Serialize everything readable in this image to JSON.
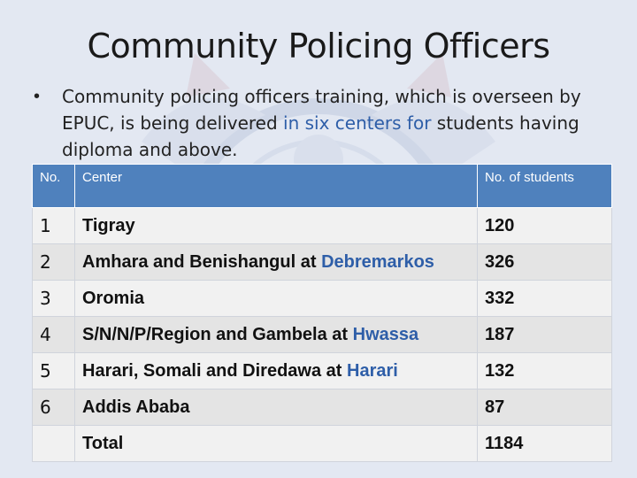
{
  "title": "Community Policing Officers",
  "bullet": {
    "part1": "Community policing officers training, which is overseen by EPUC, is being delivered ",
    "highlight": "in six centers for",
    "part2": " students having diploma and above."
  },
  "table": {
    "headers": [
      "No.",
      "Center",
      "No. of students"
    ],
    "rows": [
      {
        "no": "1",
        "center": "Tigray",
        "center_highlight": "",
        "students": "120"
      },
      {
        "no": "2",
        "center": "Amhara and Benishangul at ",
        "center_highlight": "Debremarkos",
        "students": "326"
      },
      {
        "no": "3",
        "center": "Oromia",
        "center_highlight": "",
        "students": "332"
      },
      {
        "no": "4",
        "center": "S/N/N/P/Region and Gambela at ",
        "center_highlight": "Hwassa",
        "students": "187"
      },
      {
        "no": "5",
        "center": "Harari, Somali and Diredawa at ",
        "center_highlight": "Harari",
        "students": "132"
      },
      {
        "no": "6",
        "center": "Addis Ababa",
        "center_highlight": "",
        "students": "87"
      }
    ],
    "total_label": "Total",
    "total_value": "1184"
  },
  "colors": {
    "header_bg": "#4f81bd",
    "highlight_text": "#2e5ea8"
  }
}
